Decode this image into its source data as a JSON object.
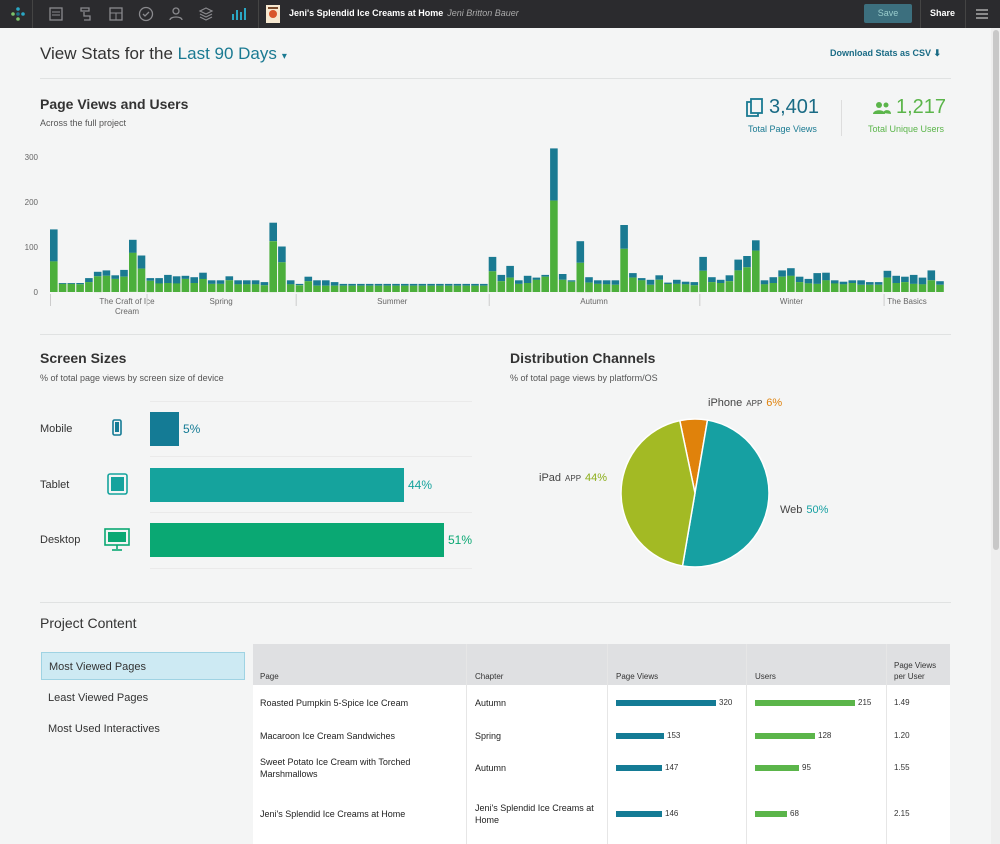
{
  "topbar": {
    "book_title": "Jeni's Splendid Ice Creams at Home",
    "author": "Jeni Britton Bauer",
    "save_label": "Save",
    "share_label": "Share",
    "icons": [
      "logo-icon",
      "page-icon",
      "structure-icon",
      "layout-icon",
      "check-icon",
      "users-icon",
      "layers-icon",
      "stats-icon",
      "menu-icon"
    ]
  },
  "header": {
    "title_prefix": "View Stats for the",
    "range": "Last 90 Days",
    "download_label": "Download Stats as CSV"
  },
  "page_views": {
    "title": "Page Views and Users",
    "subtitle": "Across the full project",
    "total_page_views": "3,401",
    "total_page_views_label": "Total Page Views",
    "total_users": "1,217",
    "total_users_label": "Total Unique Users"
  },
  "chart_data": {
    "type": "bar",
    "stacked": true,
    "y_ticks": [
      "0",
      "100",
      "200",
      "300"
    ],
    "ylim": [
      0,
      320
    ],
    "x_groups": [
      "The Craft of Ice Cream",
      "Spring",
      "Summer",
      "Autumn",
      "Winter",
      "The Basics"
    ],
    "series": [
      {
        "name": "Users",
        "color": "#4caf3c"
      },
      {
        "name": "Page Views",
        "color": "#1a7a92"
      }
    ],
    "bars": [
      [
        68,
        139
      ],
      [
        18,
        20
      ],
      [
        18,
        20
      ],
      [
        17,
        20
      ],
      [
        22,
        31
      ],
      [
        35,
        45
      ],
      [
        36,
        48
      ],
      [
        29,
        37
      ],
      [
        34,
        49
      ],
      [
        87,
        116
      ],
      [
        52,
        81
      ],
      [
        25,
        31
      ],
      [
        19,
        31
      ],
      [
        20,
        38
      ],
      [
        19,
        35
      ],
      [
        29,
        36
      ],
      [
        20,
        33
      ],
      [
        29,
        43
      ],
      [
        18,
        26
      ],
      [
        18,
        26
      ],
      [
        26,
        35
      ],
      [
        17,
        26
      ],
      [
        17,
        26
      ],
      [
        17,
        26
      ],
      [
        15,
        22
      ],
      [
        113,
        154
      ],
      [
        66,
        101
      ],
      [
        17,
        26
      ],
      [
        15,
        18
      ],
      [
        24,
        34
      ],
      [
        14,
        26
      ],
      [
        14,
        26
      ],
      [
        14,
        22
      ],
      [
        14,
        18
      ],
      [
        14,
        18
      ],
      [
        14,
        18
      ],
      [
        14,
        18
      ],
      [
        14,
        18
      ],
      [
        14,
        18
      ],
      [
        14,
        18
      ],
      [
        14,
        18
      ],
      [
        14,
        18
      ],
      [
        14,
        18
      ],
      [
        14,
        18
      ],
      [
        14,
        18
      ],
      [
        14,
        18
      ],
      [
        14,
        18
      ],
      [
        14,
        18
      ],
      [
        14,
        18
      ],
      [
        14,
        18
      ],
      [
        46,
        78
      ],
      [
        24,
        38
      ],
      [
        32,
        58
      ],
      [
        18,
        26
      ],
      [
        20,
        36
      ],
      [
        27,
        32
      ],
      [
        34,
        38
      ],
      [
        203,
        319
      ],
      [
        27,
        40
      ],
      [
        23,
        26
      ],
      [
        65,
        113
      ],
      [
        21,
        33
      ],
      [
        18,
        26
      ],
      [
        17,
        26
      ],
      [
        16,
        26
      ],
      [
        96,
        149
      ],
      [
        32,
        42
      ],
      [
        26,
        31
      ],
      [
        16,
        27
      ],
      [
        27,
        37
      ],
      [
        18,
        21
      ],
      [
        18,
        27
      ],
      [
        17,
        23
      ],
      [
        15,
        22
      ],
      [
        47,
        78
      ],
      [
        22,
        33
      ],
      [
        20,
        27
      ],
      [
        24,
        37
      ],
      [
        48,
        72
      ],
      [
        55,
        80
      ],
      [
        92,
        115
      ],
      [
        17,
        26
      ],
      [
        20,
        33
      ],
      [
        34,
        48
      ],
      [
        36,
        53
      ],
      [
        22,
        34
      ],
      [
        19,
        29
      ],
      [
        18,
        42
      ],
      [
        26,
        43
      ],
      [
        19,
        26
      ],
      [
        17,
        23
      ],
      [
        20,
        26
      ],
      [
        16,
        26
      ],
      [
        16,
        22
      ],
      [
        16,
        22
      ],
      [
        32,
        47
      ],
      [
        20,
        36
      ],
      [
        22,
        34
      ],
      [
        18,
        38
      ],
      [
        17,
        32
      ],
      [
        26,
        48
      ],
      [
        16,
        24
      ]
    ]
  },
  "screen_sizes": {
    "title": "Screen Sizes",
    "subtitle": "% of total page views by screen size of device",
    "rows": [
      {
        "label": "Mobile",
        "pct": 5,
        "pct_label": "5%",
        "color": "#147b95"
      },
      {
        "label": "Tablet",
        "pct": 44,
        "pct_label": "44%",
        "color": "#15a39d"
      },
      {
        "label": "Desktop",
        "pct": 51,
        "pct_label": "51%",
        "color": "#0aa873"
      }
    ]
  },
  "distribution": {
    "title": "Distribution Channels",
    "subtitle": "% of total page views by platform/OS",
    "slices": [
      {
        "name": "iPhone",
        "tag": "APP",
        "pct": 6,
        "pct_label": "6%",
        "color": "#e0820b"
      },
      {
        "name": "Web",
        "tag": "",
        "pct": 50,
        "pct_label": "50%",
        "color": "#16a0a2"
      },
      {
        "name": "iPad",
        "tag": "APP",
        "pct": 44,
        "pct_label": "44%",
        "color": "#a3ba24"
      }
    ]
  },
  "project_content": {
    "title": "Project Content",
    "tabs": [
      "Most Viewed Pages",
      "Least Viewed Pages",
      "Most Used Interactives"
    ],
    "columns": [
      "Page",
      "Chapter",
      "Page Views",
      "Users",
      "Page Views per User"
    ],
    "rows": [
      {
        "page": "Roasted Pumpkin 5-Spice Ice Cream",
        "chapter": "Autumn",
        "views": 320,
        "users": 215,
        "per_user": "1.49"
      },
      {
        "page": "Macaroon Ice Cream Sandwiches",
        "chapter": "Spring",
        "views": 153,
        "users": 128,
        "per_user": "1.20"
      },
      {
        "page": "Sweet Potato Ice Cream with Torched Marshmallows",
        "chapter": "Autumn",
        "views": 147,
        "users": 95,
        "per_user": "1.55"
      },
      {
        "page": "Jeni's Splendid Ice Creams at Home",
        "chapter": "Jeni's Splendid Ice Creams at Home",
        "views": 146,
        "users": 68,
        "per_user": "2.15"
      }
    ]
  }
}
